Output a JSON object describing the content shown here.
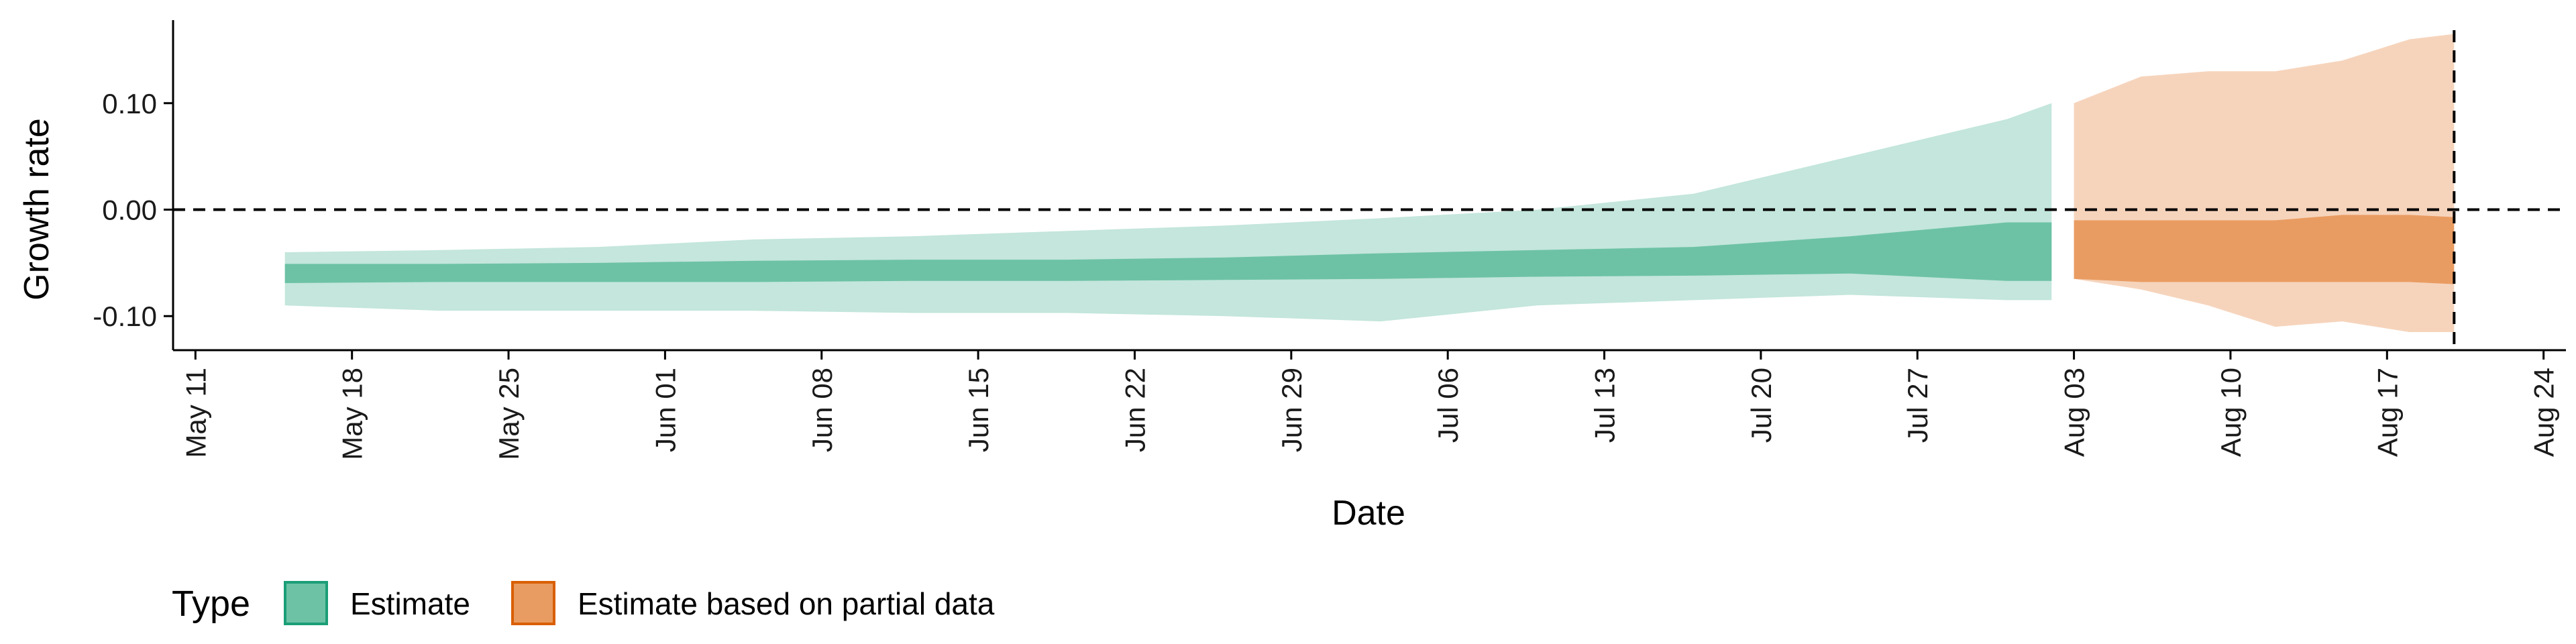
{
  "chart_data": {
    "type": "area",
    "xlabel": "Date",
    "ylabel": "Growth rate",
    "xlim": [
      "2020-05-10",
      "2020-08-25"
    ],
    "ylim": [
      -0.132,
      0.178
    ],
    "x_ticks": [
      "2020-05-11",
      "2020-05-18",
      "2020-05-25",
      "2020-06-01",
      "2020-06-08",
      "2020-06-15",
      "2020-06-22",
      "2020-06-29",
      "2020-07-06",
      "2020-07-13",
      "2020-07-20",
      "2020-07-27",
      "2020-08-03",
      "2020-08-10",
      "2020-08-17",
      "2020-08-24"
    ],
    "x_tick_labels": [
      "May 11",
      "May 18",
      "May 25",
      "Jun 01",
      "Jun 08",
      "Jun 15",
      "Jun 22",
      "Jun 29",
      "Jul 06",
      "Jul 13",
      "Jul 20",
      "Jul 27",
      "Aug 03",
      "Aug 10",
      "Aug 17",
      "Aug 24"
    ],
    "y_ticks": [
      -0.1,
      0.0,
      0.1
    ],
    "y_tick_labels": [
      "-0.10",
      "0.00",
      "0.10"
    ],
    "hline": 0.0,
    "vline": "2020-08-20",
    "legend": {
      "title": "Type",
      "placement": "bottom",
      "entries": [
        "Estimate",
        "Estimate based on partial data"
      ]
    },
    "colors": {
      "estimate_inner": "#6dc2a5",
      "estimate_outer": "#c4e6dc",
      "estimate_border": "#1b9e77",
      "partial_inner": "#e99c62",
      "partial_outer": "#f6d4bc",
      "partial_border": "#d95f02"
    },
    "series": [
      {
        "name": "Estimate",
        "x": [
          "2020-05-15",
          "2020-05-22",
          "2020-05-29",
          "2020-06-05",
          "2020-06-12",
          "2020-06-19",
          "2020-06-26",
          "2020-07-03",
          "2020-07-10",
          "2020-07-17",
          "2020-07-24",
          "2020-07-31",
          "2020-08-02"
        ],
        "inner_lower": [
          -0.069,
          -0.068,
          -0.068,
          -0.068,
          -0.067,
          -0.067,
          -0.066,
          -0.065,
          -0.063,
          -0.062,
          -0.06,
          -0.067,
          -0.067
        ],
        "inner_upper": [
          -0.051,
          -0.051,
          -0.05,
          -0.048,
          -0.047,
          -0.047,
          -0.045,
          -0.041,
          -0.038,
          -0.035,
          -0.025,
          -0.012,
          -0.012
        ],
        "outer_lower": [
          -0.09,
          -0.095,
          -0.095,
          -0.095,
          -0.097,
          -0.097,
          -0.1,
          -0.105,
          -0.09,
          -0.085,
          -0.08,
          -0.085,
          -0.085
        ],
        "outer_upper": [
          -0.04,
          -0.038,
          -0.035,
          -0.028,
          -0.025,
          -0.02,
          -0.015,
          -0.008,
          0.0,
          0.015,
          0.05,
          0.085,
          0.1
        ]
      },
      {
        "name": "Estimate based on partial data",
        "x": [
          "2020-08-03",
          "2020-08-06",
          "2020-08-09",
          "2020-08-12",
          "2020-08-15",
          "2020-08-18",
          "2020-08-20"
        ],
        "inner_lower": [
          -0.065,
          -0.068,
          -0.068,
          -0.068,
          -0.068,
          -0.068,
          -0.07
        ],
        "inner_upper": [
          -0.01,
          -0.01,
          -0.01,
          -0.01,
          -0.005,
          -0.005,
          -0.007
        ],
        "outer_lower": [
          -0.065,
          -0.075,
          -0.09,
          -0.11,
          -0.105,
          -0.115,
          -0.115
        ],
        "outer_upper": [
          0.1,
          0.125,
          0.13,
          0.13,
          0.14,
          0.16,
          0.165
        ]
      }
    ]
  }
}
